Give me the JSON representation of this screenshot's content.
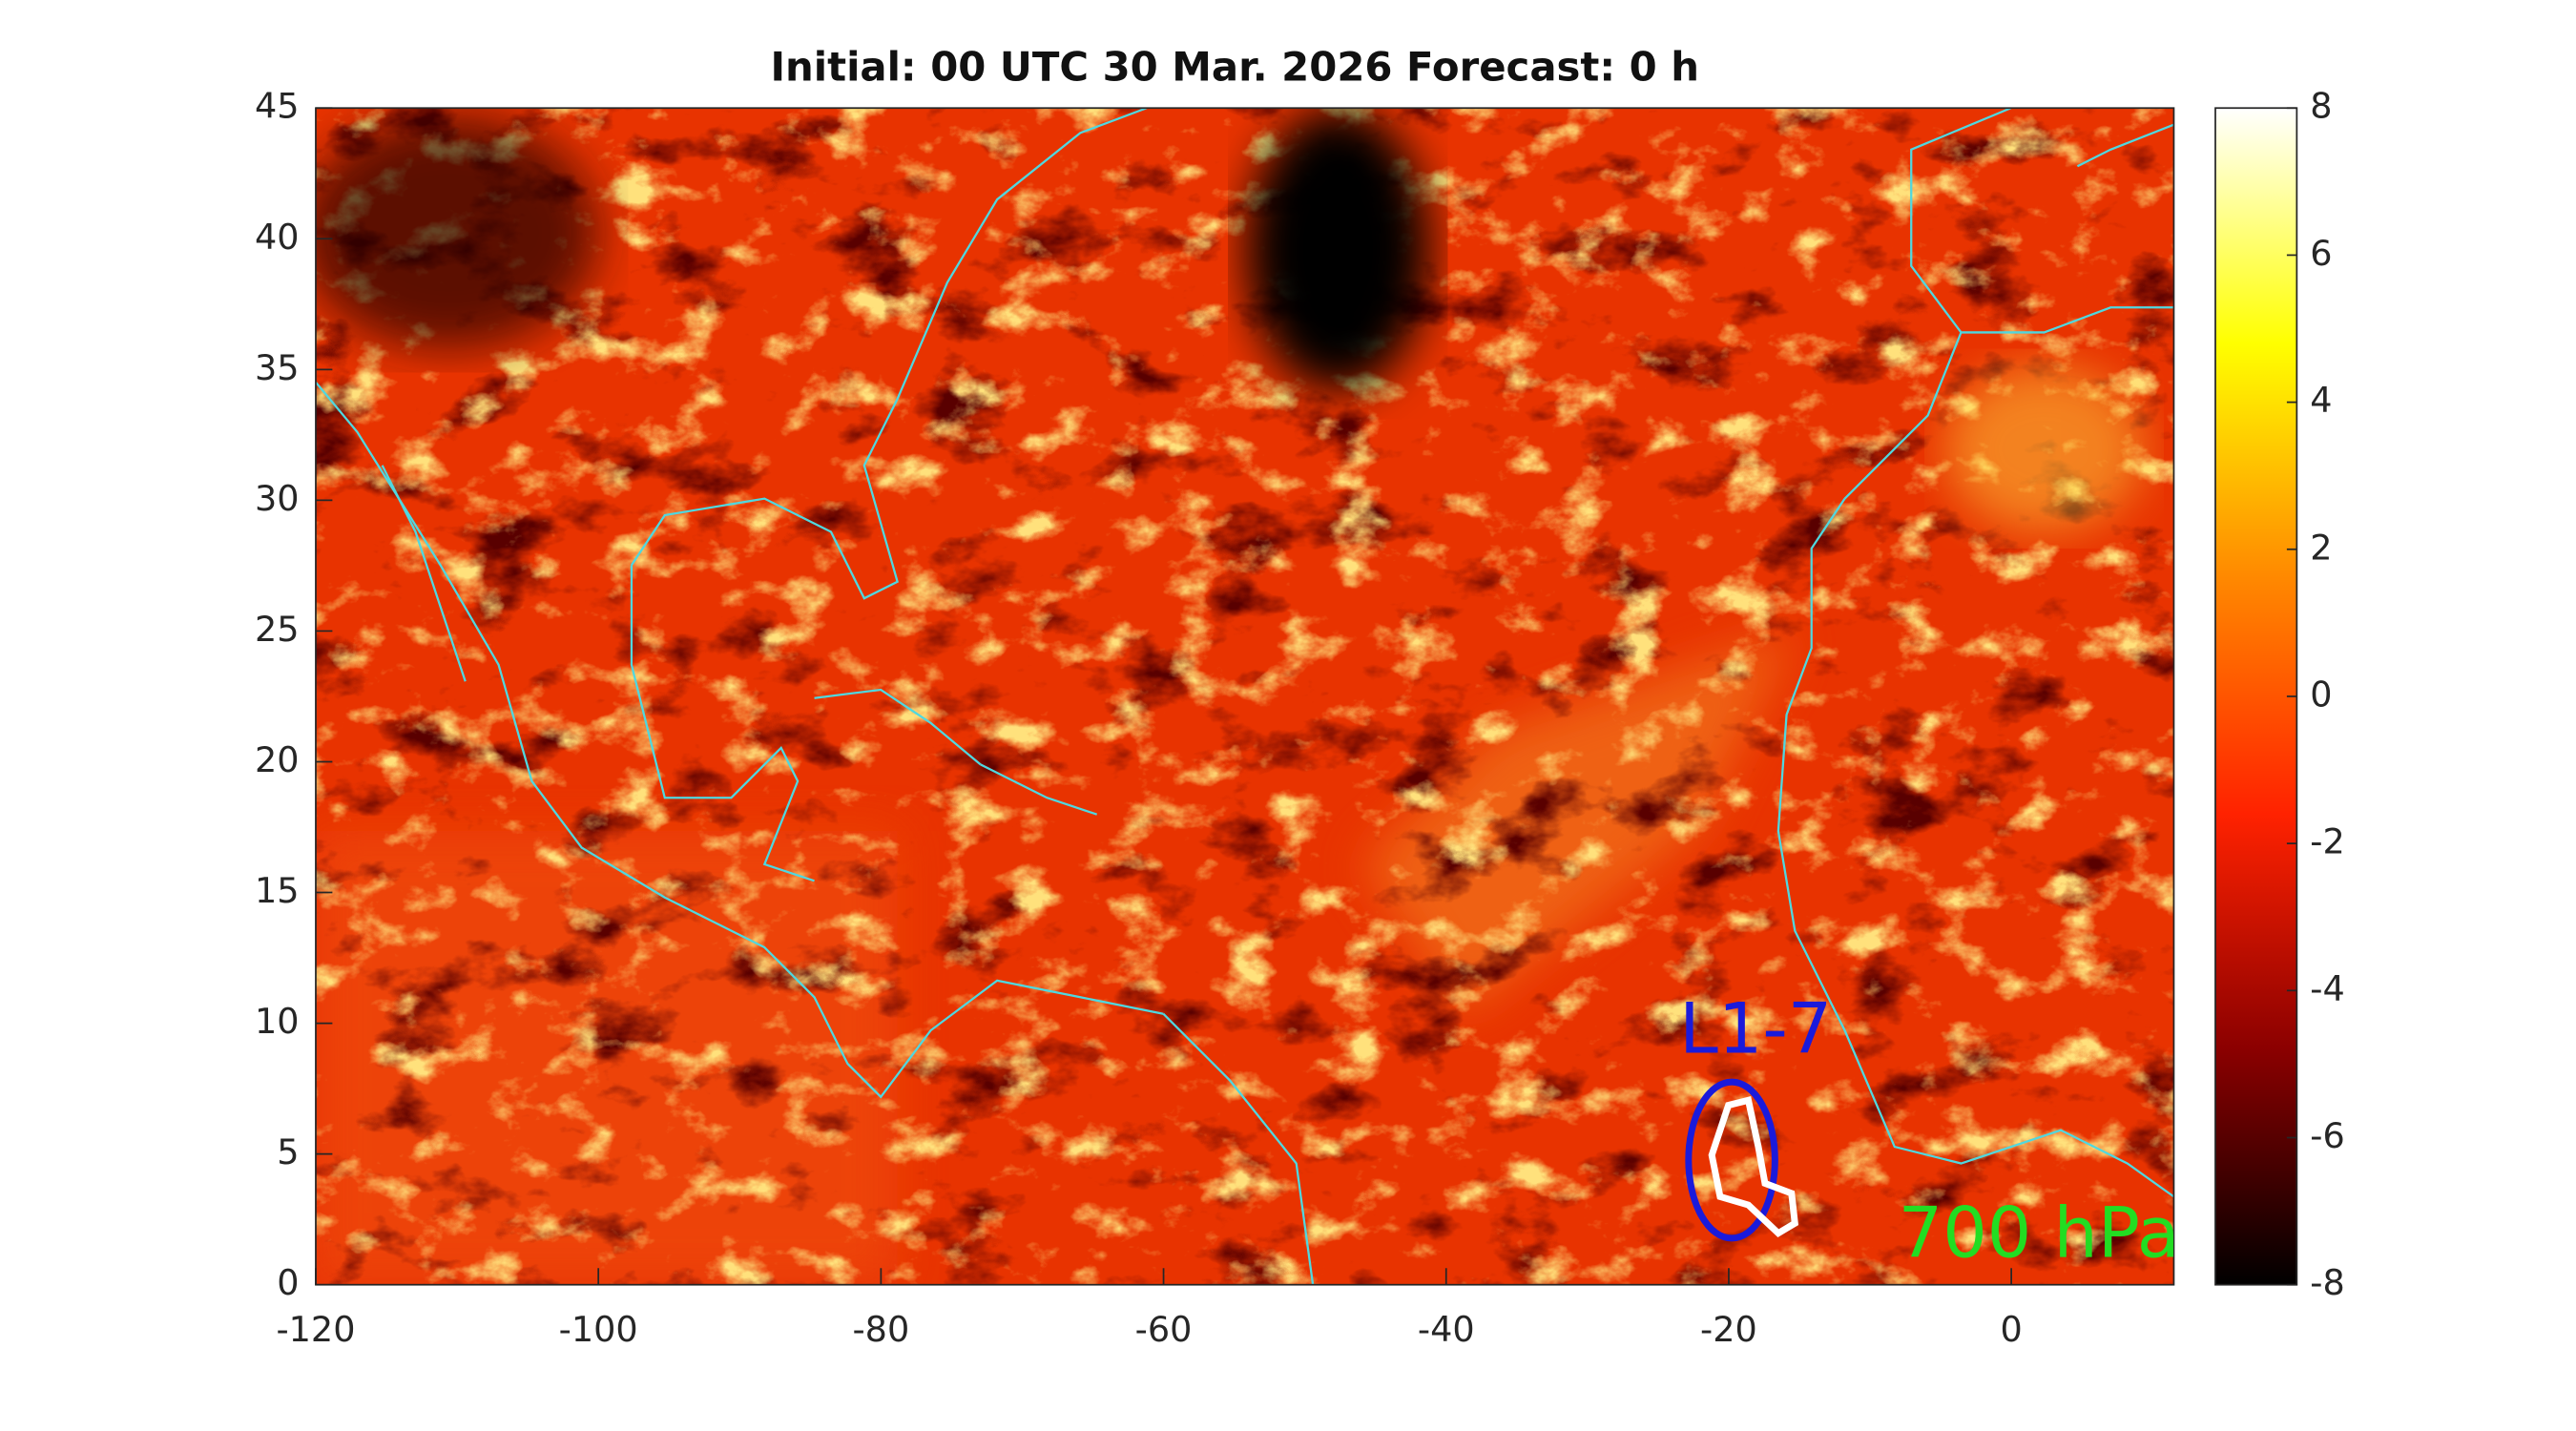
{
  "chart_data": {
    "type": "heatmap-map",
    "title": "Initial: 00 UTC 30 Mar. 2026 Forecast: 0 h",
    "xlim": [
      -120,
      11.5
    ],
    "xticks": [
      -120,
      -100,
      -80,
      -60,
      -40,
      -20,
      0
    ],
    "ylim": [
      0,
      45
    ],
    "yticks": [
      0,
      5,
      10,
      15,
      20,
      25,
      30,
      35,
      40,
      45
    ],
    "clim": [
      -8,
      8
    ],
    "cticks": [
      -8,
      -6,
      -4,
      -2,
      0,
      2,
      4,
      6,
      8
    ],
    "colormap": [
      "#000000",
      "#8b0000",
      "#ff2200",
      "#ff8800",
      "#ffff00",
      "#ffffff"
    ],
    "annotations": [
      {
        "text": "L1-7",
        "x": -23.5,
        "y": 9.6,
        "color": "#1a1adb"
      },
      {
        "text": "700 hPa",
        "x": -8,
        "y": 1.8,
        "color": "#22dd22"
      }
    ]
  }
}
